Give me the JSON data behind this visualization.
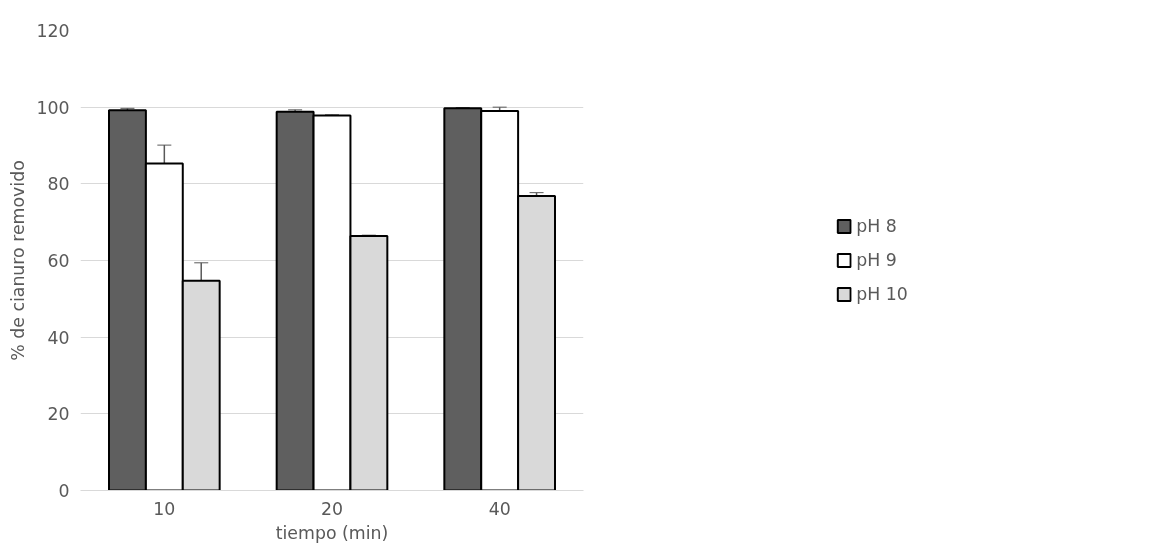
{
  "chart_data": {
    "type": "bar",
    "xlabel": "tiempo (min)",
    "ylabel": "% de cianuro removido",
    "categories": [
      "10",
      "20",
      "40"
    ],
    "series": [
      {
        "name": "pH 8",
        "color": "#5f5f5f",
        "values": [
          99.2,
          98.8,
          99.7
        ],
        "errors": [
          0.5,
          0.5,
          0.2
        ]
      },
      {
        "name": "pH 9",
        "color": "#ffffff",
        "values": [
          85.3,
          97.8,
          99.0
        ],
        "errors": [
          4.8,
          0.2,
          1.0
        ]
      },
      {
        "name": "pH 10",
        "color": "#d9d9d9",
        "values": [
          54.7,
          66.4,
          76.8
        ],
        "errors": [
          4.7,
          0.2,
          0.9
        ]
      }
    ],
    "ylim": [
      0,
      120
    ],
    "yticks": [
      0,
      20,
      40,
      60,
      80,
      100,
      120
    ],
    "grid": "y",
    "legend": "right"
  }
}
